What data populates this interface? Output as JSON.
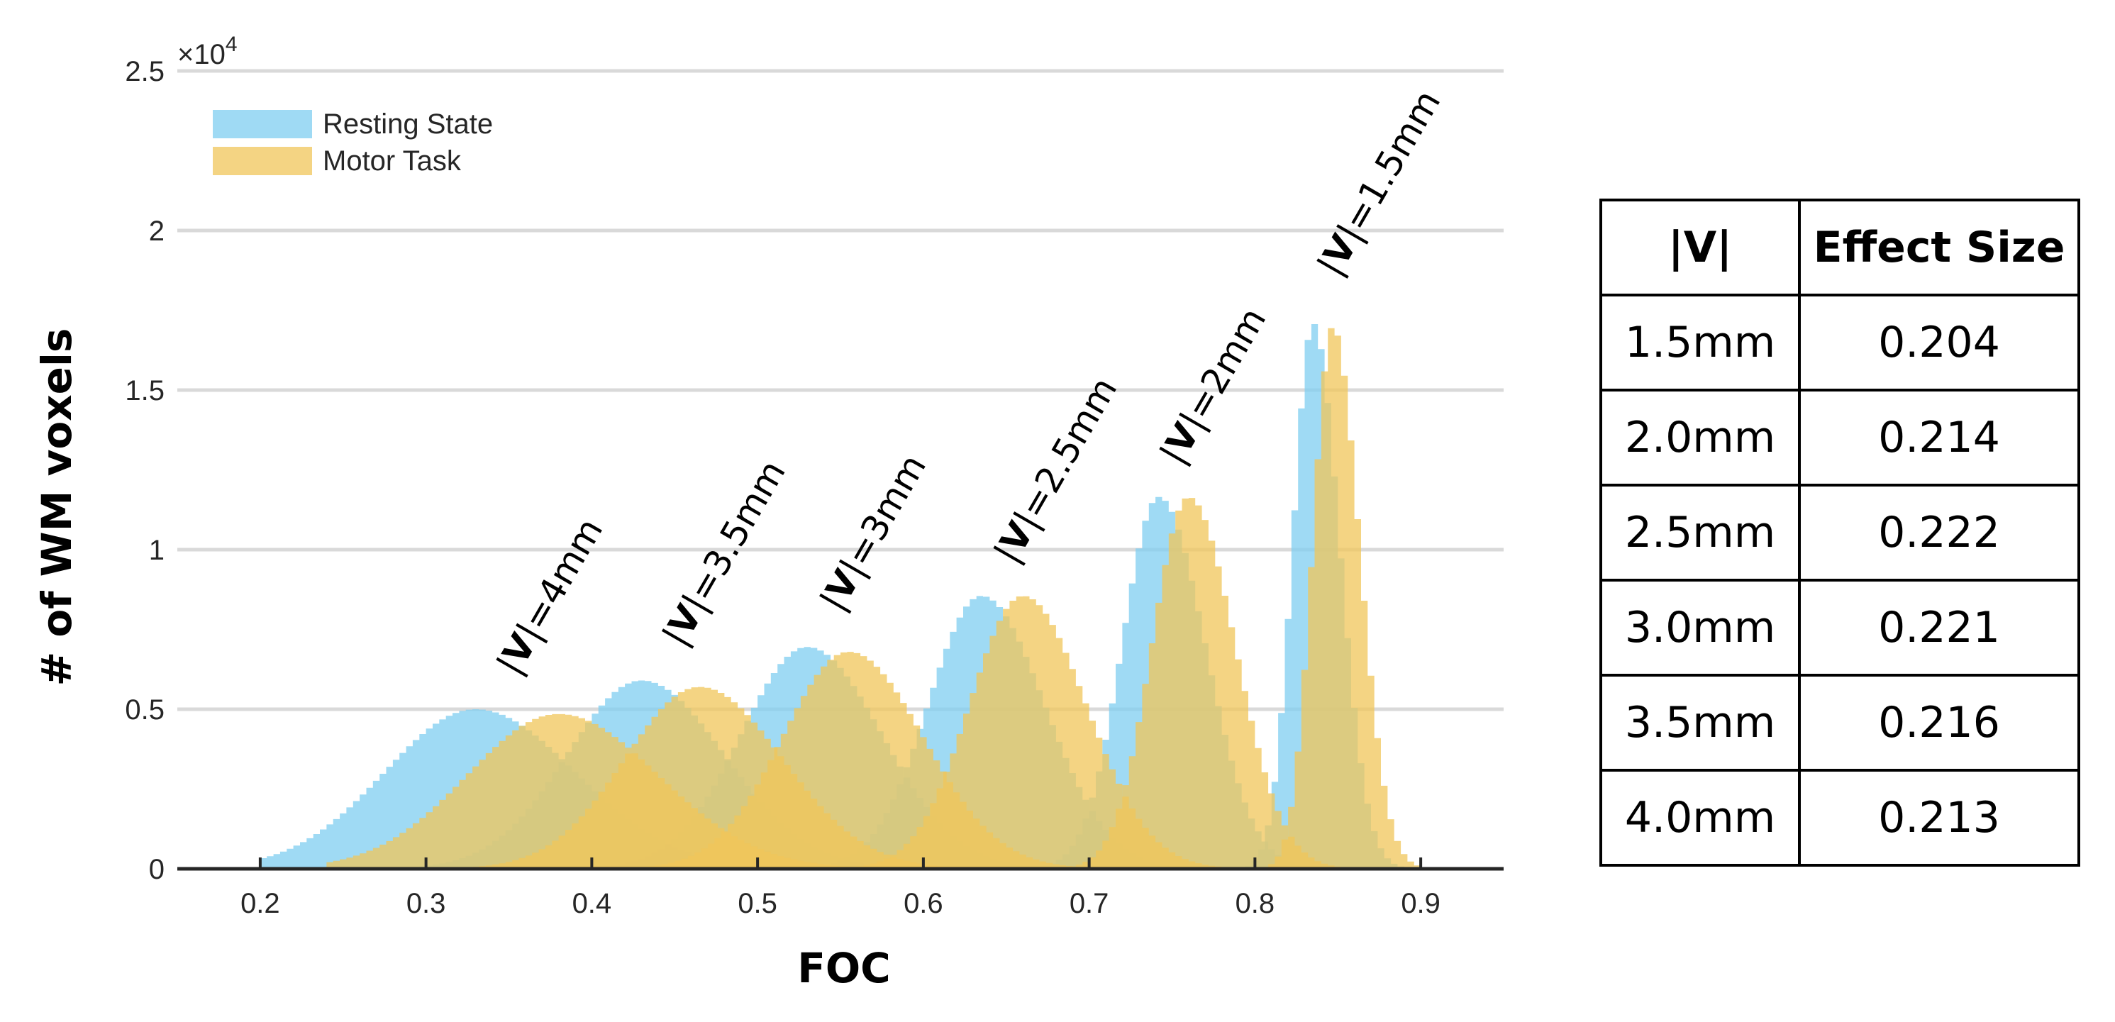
{
  "chart_data": {
    "type": "area",
    "xlabel": "FOC",
    "ylabel": "# of WM voxels",
    "y_exponent_label": "×10",
    "y_exponent_power": "4",
    "xlim": [
      0.15,
      0.95
    ],
    "ylim": [
      0,
      25000
    ],
    "xticks": [
      "0.2",
      "0.3",
      "0.4",
      "0.5",
      "0.6",
      "0.7",
      "0.8",
      "0.9"
    ],
    "yticks": [
      "0",
      "0.5",
      "1",
      "1.5",
      "2",
      "2.5"
    ],
    "grid": "horizontal",
    "legend_position": "top-left",
    "series": [
      {
        "name": "Resting State",
        "color": "#7fcdf0",
        "distributions": [
          {
            "voxel_size": "4mm",
            "peak_x": 0.33,
            "peak_y": 5000,
            "left_sd": 0.055,
            "right_sd": 0.06,
            "x_min": 0.2
          },
          {
            "voxel_size": "3.5mm",
            "peak_x": 0.43,
            "peak_y": 5900,
            "left_sd": 0.045,
            "right_sd": 0.05,
            "x_min": 0.28
          },
          {
            "voxel_size": "3mm",
            "peak_x": 0.53,
            "peak_y": 6950,
            "left_sd": 0.04,
            "right_sd": 0.045,
            "x_min": 0.38
          },
          {
            "voxel_size": "2.5mm",
            "peak_x": 0.635,
            "peak_y": 8550,
            "left_sd": 0.032,
            "right_sd": 0.038,
            "x_min": 0.5
          },
          {
            "voxel_size": "2mm",
            "peak_x": 0.742,
            "peak_y": 11650,
            "left_sd": 0.022,
            "right_sd": 0.028,
            "x_min": 0.66
          },
          {
            "voxel_size": "1.5mm",
            "peak_x": 0.835,
            "peak_y": 17100,
            "left_sd": 0.012,
            "right_sd": 0.016,
            "x_min": 0.79
          }
        ]
      },
      {
        "name": "Motor Task",
        "color": "#f0c55a",
        "distributions": [
          {
            "voxel_size": "4mm",
            "peak_x": 0.38,
            "peak_y": 4850,
            "left_sd": 0.055,
            "right_sd": 0.06,
            "x_min": 0.24
          },
          {
            "voxel_size": "3.5mm",
            "peak_x": 0.465,
            "peak_y": 5700,
            "left_sd": 0.045,
            "right_sd": 0.05,
            "x_min": 0.32
          },
          {
            "voxel_size": "3mm",
            "peak_x": 0.555,
            "peak_y": 6800,
            "left_sd": 0.04,
            "right_sd": 0.045,
            "x_min": 0.41
          },
          {
            "voxel_size": "2.5mm",
            "peak_x": 0.66,
            "peak_y": 8550,
            "left_sd": 0.032,
            "right_sd": 0.038,
            "x_min": 0.52
          },
          {
            "voxel_size": "2mm",
            "peak_x": 0.76,
            "peak_y": 11650,
            "left_sd": 0.022,
            "right_sd": 0.028,
            "x_min": 0.68
          },
          {
            "voxel_size": "1.5mm",
            "peak_x": 0.847,
            "peak_y": 17000,
            "left_sd": 0.012,
            "right_sd": 0.016,
            "x_min": 0.8
          }
        ]
      }
    ],
    "annotations": [
      {
        "prefix": "|",
        "bold": "V",
        "suffix": "|=4mm",
        "x": 0.355,
        "y": 6000
      },
      {
        "prefix": "|",
        "bold": "V",
        "suffix": "|=3.5mm",
        "x": 0.455,
        "y": 6900
      },
      {
        "prefix": "|",
        "bold": "V",
        "suffix": "|=3mm",
        "x": 0.55,
        "y": 8000
      },
      {
        "prefix": "|",
        "bold": "V",
        "suffix": "|=2.5mm",
        "x": 0.655,
        "y": 9500
      },
      {
        "prefix": "|",
        "bold": "V",
        "suffix": "|=2mm",
        "x": 0.755,
        "y": 12600
      },
      {
        "prefix": "|",
        "bold": "V",
        "suffix": "|=1.5mm",
        "x": 0.85,
        "y": 18500
      }
    ]
  },
  "table": {
    "headers": [
      "|V|",
      "Effect Size"
    ],
    "rows": [
      [
        "1.5mm",
        "0.204"
      ],
      [
        "2.0mm",
        "0.214"
      ],
      [
        "2.5mm",
        "0.222"
      ],
      [
        "3.0mm",
        "0.221"
      ],
      [
        "3.5mm",
        "0.216"
      ],
      [
        "4.0mm",
        "0.213"
      ]
    ]
  }
}
